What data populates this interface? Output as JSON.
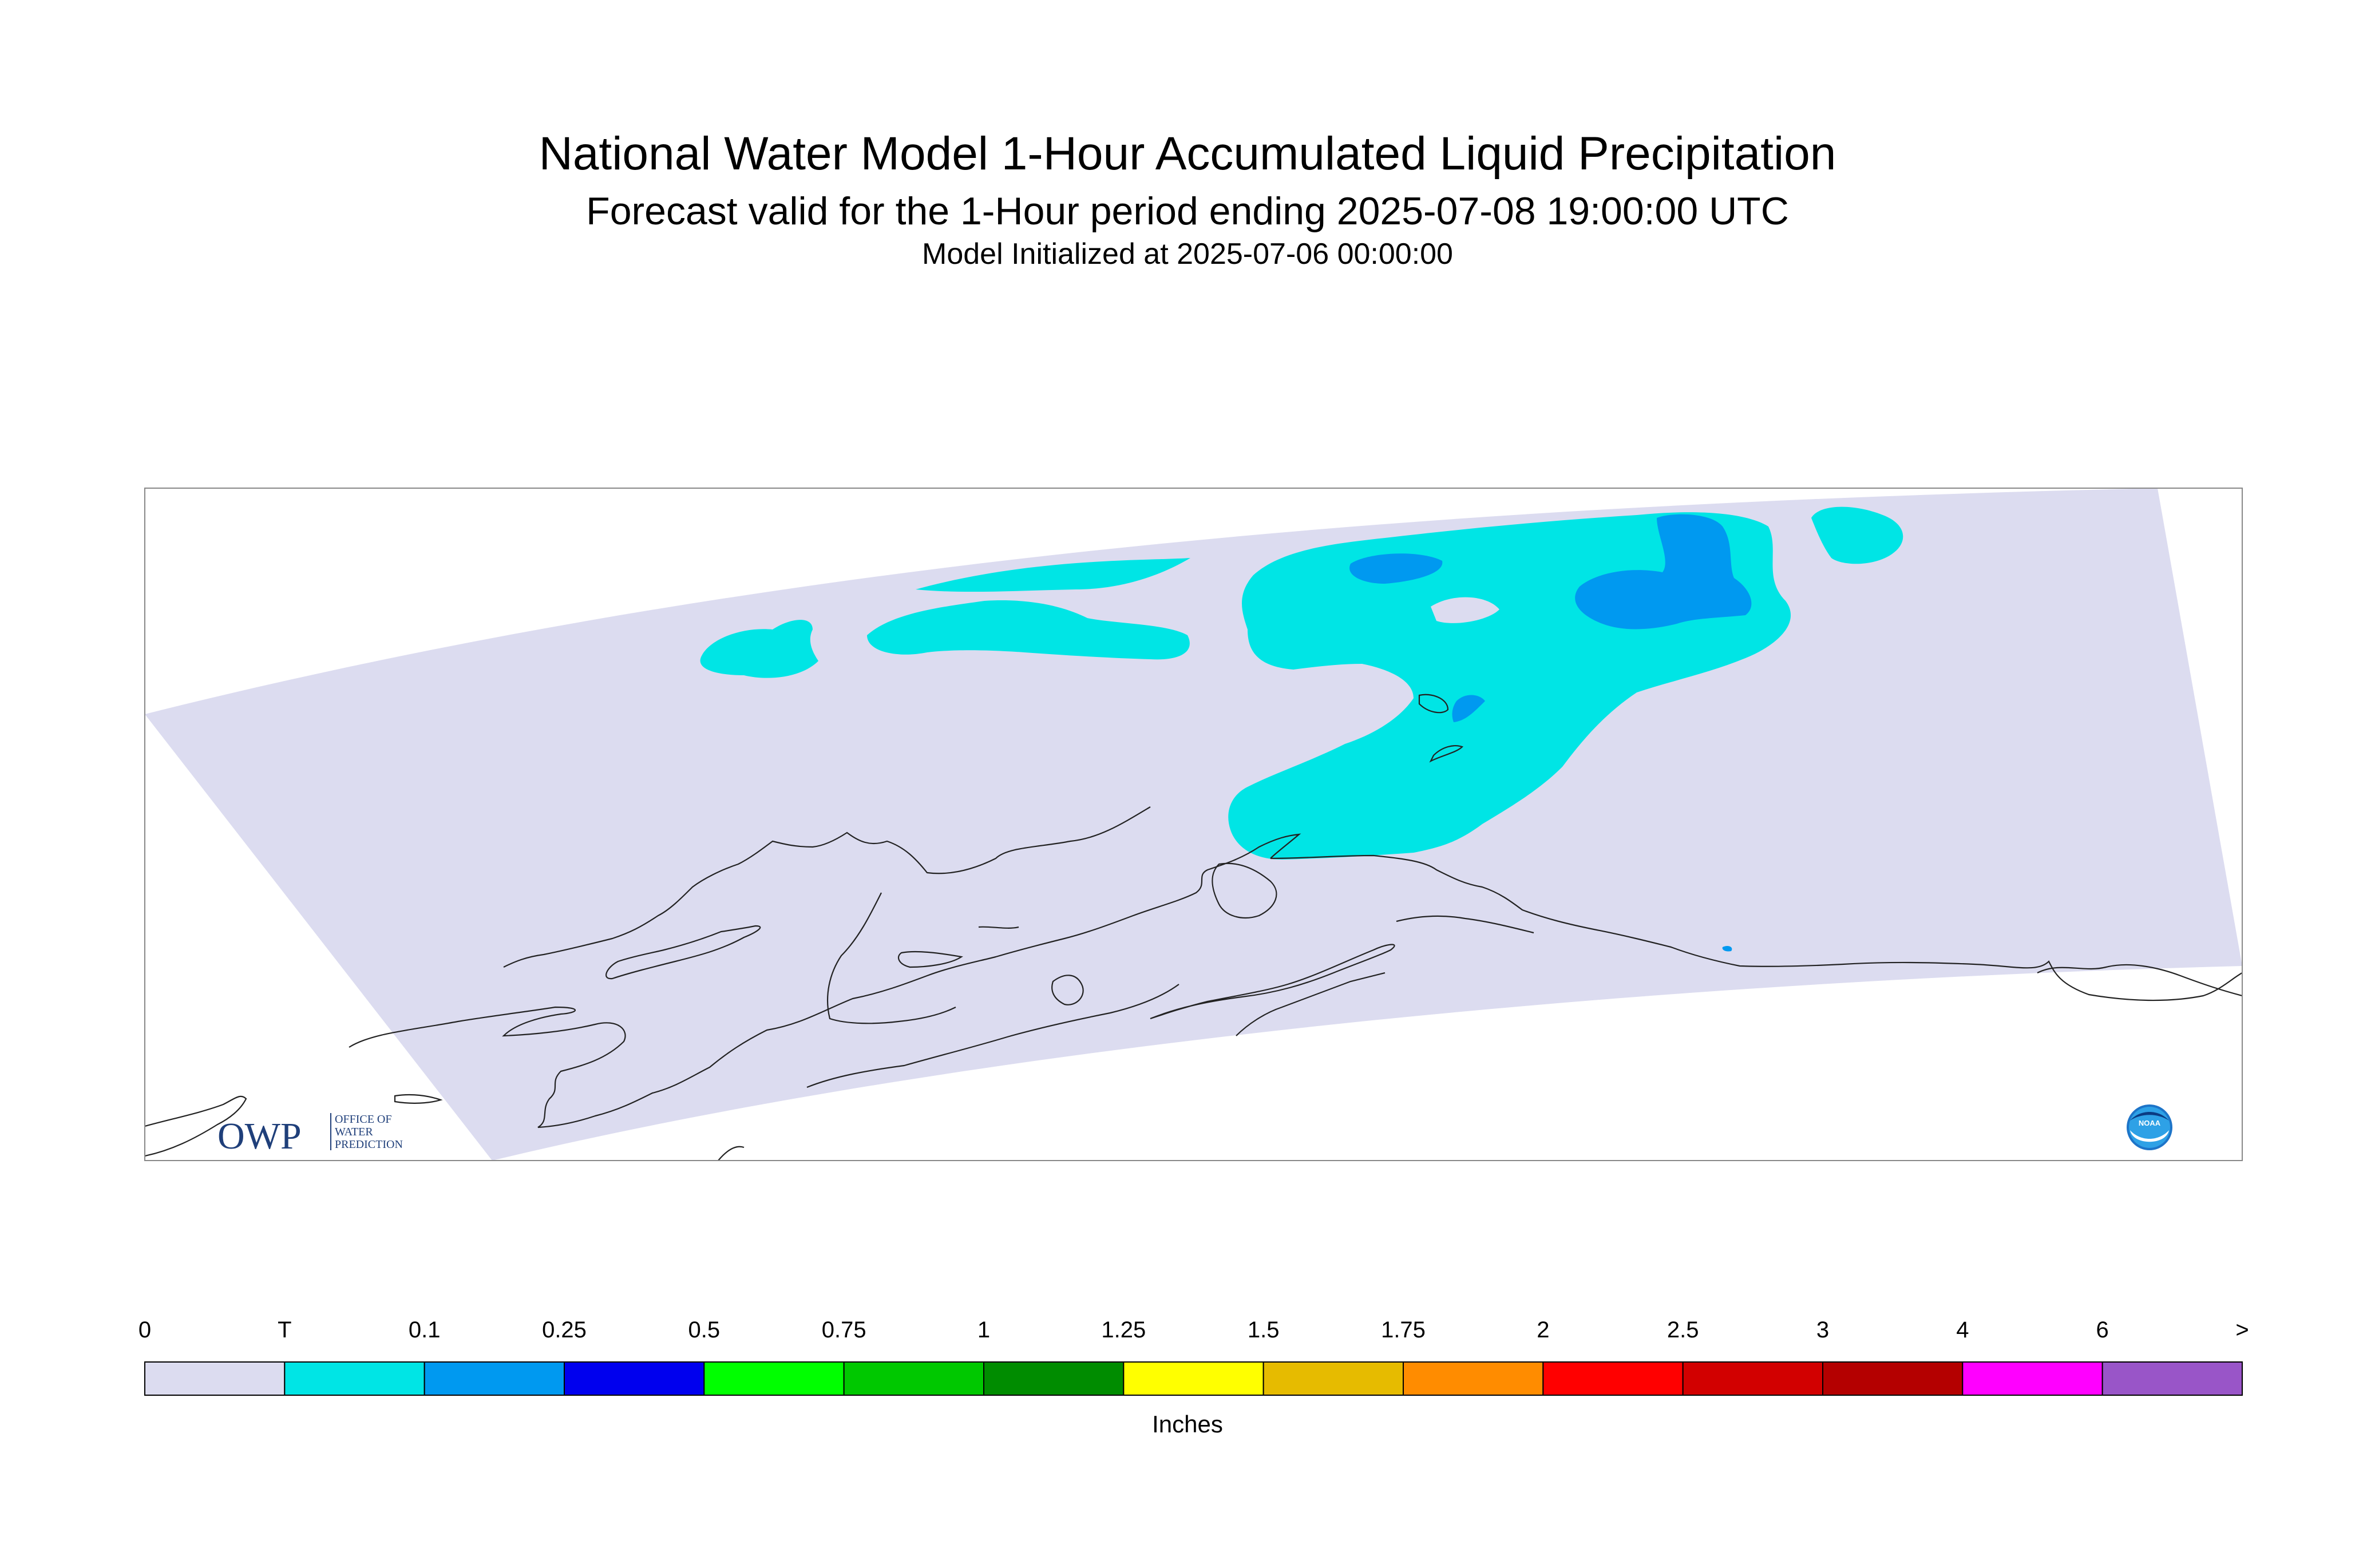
{
  "title": {
    "main": "National Water Model 1-Hour Accumulated Liquid Precipitation",
    "forecast": "Forecast valid for the 1-Hour period ending 2025-07-08 19:00:00 UTC",
    "initialized": "Model Initialized at 2025-07-06 00:00:00"
  },
  "logos": {
    "owp": {
      "letters": "OWP",
      "line1": "OFFICE OF",
      "line2": "WATER",
      "line3": "PREDICTION"
    },
    "noaa": {
      "letters": "NOAA"
    }
  },
  "colorbar": {
    "units": "Inches",
    "tick_labels": [
      "0",
      "T",
      "0.1",
      "0.25",
      "0.5",
      "0.75",
      "1",
      "1.25",
      "1.5",
      "1.75",
      "2",
      "2.5",
      "3",
      "4",
      "6",
      ">"
    ],
    "bins": [
      "#dcdcf0",
      "#00e5e5",
      "#0099f0",
      "#0000ee",
      "#00ff00",
      "#00c800",
      "#008c00",
      "#ffff00",
      "#e6bb00",
      "#ff8c00",
      "#ff0000",
      "#d20000",
      "#b40000",
      "#ff00ff",
      "#9955c8"
    ]
  },
  "colors": {
    "no_precip": "#dcdcf0",
    "trace": "#00e5e5",
    "light": "#0099f0"
  }
}
